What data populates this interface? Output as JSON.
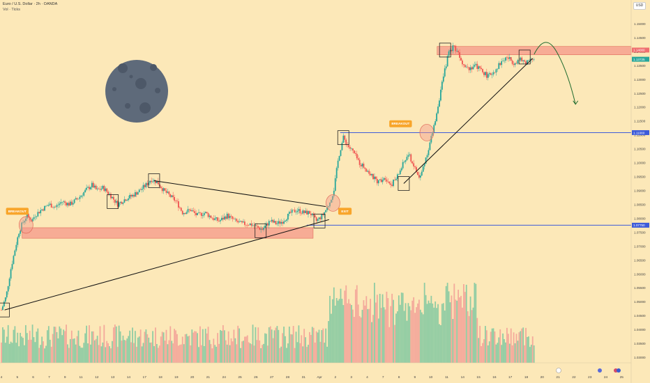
{
  "header": {
    "symbol": "Euro / U.S. Dollar · 2h · OANDA",
    "volume_label": "Vol · Ticks",
    "currency": "USD"
  },
  "colors": {
    "background": "#fce8b8",
    "bull": "#26a69a",
    "bear": "#ef5350",
    "vol_bull": "#8fcca3",
    "vol_bear": "#f4a99b",
    "zone": "#f59c8c",
    "blue_line": "#3d5bd9",
    "badge": "#f8a52a",
    "moon": "#5e6a7a"
  },
  "chart_data": {
    "type": "candlestick",
    "symbol": "EURUSD",
    "timeframe": "2h",
    "ylim": [
      1.028,
      1.153
    ],
    "y_ticks": [
      1.15,
      1.145,
      1.14,
      1.135,
      1.13,
      1.125,
      1.12,
      1.115,
      1.11,
      1.105,
      1.1,
      1.095,
      1.09,
      1.085,
      1.08,
      1.075,
      1.07,
      1.065,
      1.06,
      1.055,
      1.05,
      1.045,
      1.04,
      1.035,
      1.03
    ],
    "y_tick_labels": [
      "1.15000",
      "1.14500",
      "1.14000",
      "1.13500",
      "1.13000",
      "1.12500",
      "1.12000",
      "1.11500",
      "1.11000",
      "1.10500",
      "1.10000",
      "1.09500",
      "1.09000",
      "1.08500",
      "1.08000",
      "1.07500",
      "1.07000",
      "1.06500",
      "1.06000",
      "1.05500",
      "1.05000",
      "1.04500",
      "1.04000",
      "1.03500",
      "1.03000"
    ],
    "x_ticks": [
      {
        "label": "4",
        "x": 0
      },
      {
        "label": "5",
        "x": 1
      },
      {
        "label": "6",
        "x": 2
      },
      {
        "label": "7",
        "x": 3
      },
      {
        "label": "9",
        "x": 4
      },
      {
        "label": "11",
        "x": 5
      },
      {
        "label": "12",
        "x": 6
      },
      {
        "label": "13",
        "x": 7
      },
      {
        "label": "14",
        "x": 8
      },
      {
        "label": "17",
        "x": 9
      },
      {
        "label": "18",
        "x": 10
      },
      {
        "label": "19",
        "x": 11
      },
      {
        "label": "20",
        "x": 12
      },
      {
        "label": "21",
        "x": 13
      },
      {
        "label": "24",
        "x": 14
      },
      {
        "label": "25",
        "x": 15
      },
      {
        "label": "26",
        "x": 16
      },
      {
        "label": "27",
        "x": 17
      },
      {
        "label": "28",
        "x": 18
      },
      {
        "label": "31",
        "x": 19
      },
      {
        "label": "Apr",
        "x": 20
      },
      {
        "label": "2",
        "x": 21
      },
      {
        "label": "3",
        "x": 22
      },
      {
        "label": "4",
        "x": 23
      },
      {
        "label": "7",
        "x": 24
      },
      {
        "label": "8",
        "x": 25
      },
      {
        "label": "9",
        "x": 26
      },
      {
        "label": "10",
        "x": 27
      },
      {
        "label": "11",
        "x": 28
      },
      {
        "label": "14",
        "x": 29
      },
      {
        "label": "15",
        "x": 30
      },
      {
        "label": "16",
        "x": 31
      },
      {
        "label": "17",
        "x": 32
      },
      {
        "label": "18",
        "x": 33
      },
      {
        "label": "20",
        "x": 34
      },
      {
        "label": "21",
        "x": 35
      },
      {
        "label": "22",
        "x": 36
      },
      {
        "label": "23",
        "x": 37
      },
      {
        "label": "24",
        "x": 38
      },
      {
        "label": "25",
        "x": 39
      }
    ],
    "price_path": [
      [
        0,
        1.047
      ],
      [
        0.3,
        1.052
      ],
      [
        0.6,
        1.062
      ],
      [
        0.9,
        1.07
      ],
      [
        1.1,
        1.075
      ],
      [
        1.3,
        1.078
      ],
      [
        1.6,
        1.081
      ],
      [
        1.9,
        1.079
      ],
      [
        2.1,
        1.081
      ],
      [
        2.5,
        1.083
      ],
      [
        3.0,
        1.085
      ],
      [
        3.4,
        1.084
      ],
      [
        3.8,
        1.086
      ],
      [
        4.3,
        1.085
      ],
      [
        4.8,
        1.087
      ],
      [
        5.3,
        1.09
      ],
      [
        5.7,
        1.092
      ],
      [
        6.0,
        1.09
      ],
      [
        6.4,
        1.091
      ],
      [
        6.9,
        1.088
      ],
      [
        7.3,
        1.085
      ],
      [
        7.8,
        1.087
      ],
      [
        8.2,
        1.088
      ],
      [
        8.7,
        1.09
      ],
      [
        9.1,
        1.092
      ],
      [
        9.4,
        1.094
      ],
      [
        9.8,
        1.093
      ],
      [
        10.2,
        1.09
      ],
      [
        10.6,
        1.088
      ],
      [
        11.0,
        1.086
      ],
      [
        11.4,
        1.082
      ],
      [
        11.9,
        1.083
      ],
      [
        12.3,
        1.081
      ],
      [
        12.8,
        1.082
      ],
      [
        13.3,
        1.08
      ],
      [
        13.7,
        1.079
      ],
      [
        14.2,
        1.081
      ],
      [
        14.7,
        1.079
      ],
      [
        15.1,
        1.078
      ],
      [
        15.6,
        1.078
      ],
      [
        16.0,
        1.077
      ],
      [
        16.4,
        1.076
      ],
      [
        16.9,
        1.079
      ],
      [
        17.3,
        1.078
      ],
      [
        17.7,
        1.079
      ],
      [
        18.2,
        1.082
      ],
      [
        18.6,
        1.083
      ],
      [
        19.0,
        1.082
      ],
      [
        19.4,
        1.082
      ],
      [
        19.8,
        1.079
      ],
      [
        20.2,
        1.081
      ],
      [
        20.6,
        1.085
      ],
      [
        20.9,
        1.09
      ],
      [
        21.2,
        1.102
      ],
      [
        21.5,
        1.109
      ],
      [
        21.8,
        1.106
      ],
      [
        22.1,
        1.104
      ],
      [
        22.5,
        1.1
      ],
      [
        22.9,
        1.098
      ],
      [
        23.3,
        1.095
      ],
      [
        23.7,
        1.093
      ],
      [
        24.1,
        1.095
      ],
      [
        24.5,
        1.092
      ],
      [
        24.9,
        1.095
      ],
      [
        25.3,
        1.1
      ],
      [
        25.6,
        1.103
      ],
      [
        26.0,
        1.098
      ],
      [
        26.3,
        1.094
      ],
      [
        26.6,
        1.1
      ],
      [
        26.9,
        1.106
      ],
      [
        27.2,
        1.113
      ],
      [
        27.5,
        1.122
      ],
      [
        27.8,
        1.131
      ],
      [
        28.1,
        1.139
      ],
      [
        28.4,
        1.142
      ],
      [
        28.7,
        1.14
      ],
      [
        29.0,
        1.136
      ],
      [
        29.4,
        1.134
      ],
      [
        29.8,
        1.135
      ],
      [
        30.2,
        1.133
      ],
      [
        30.6,
        1.131
      ],
      [
        31.0,
        1.133
      ],
      [
        31.4,
        1.136
      ],
      [
        31.8,
        1.138
      ],
      [
        32.2,
        1.136
      ],
      [
        32.6,
        1.137
      ],
      [
        33.0,
        1.136
      ],
      [
        33.3,
        1.138
      ],
      [
        33.5,
        1.137
      ]
    ],
    "projection": [
      [
        33.5,
        1.139
      ],
      [
        34.2,
        1.1425
      ],
      [
        34.9,
        1.14
      ],
      [
        35.6,
        1.13
      ],
      [
        36.1,
        1.121
      ]
    ],
    "last_price": 1.1372,
    "last_price_label": "1.13725",
    "zones": [
      {
        "name": "resistance-zone",
        "x0": 27.4,
        "x1": 39.6,
        "y0": 1.1388,
        "y1": 1.1418
      },
      {
        "name": "support-zone",
        "x0": 1.3,
        "x1": 19.6,
        "y0": 1.0728,
        "y1": 1.0766
      }
    ],
    "horizontal_lines": [
      {
        "name": "breakout-level-line",
        "x0": 21.3,
        "x1": 39.6,
        "y": 1.1108,
        "label": "1.11080"
      },
      {
        "name": "support-level-line",
        "x0": 19.2,
        "x1": 39.6,
        "y": 1.0775,
        "label": "1.07750"
      }
    ],
    "price_labels": [
      {
        "name": "resistance-zone-label",
        "y": 1.1405,
        "text": "1.14000"
      }
    ],
    "trendlines": [
      {
        "name": "main-uptrend-line",
        "x0": 0.2,
        "y0": 1.047,
        "x1": 20.6,
        "y1": 1.0795
      },
      {
        "name": "descending-triangle-line",
        "x0": 9.6,
        "y0": 1.0935,
        "x1": 20.4,
        "y1": 1.0842
      },
      {
        "name": "new-uptrend-line",
        "x0": 25.3,
        "y0": 1.0925,
        "x1": 33.4,
        "y1": 1.1375
      }
    ],
    "boxes": [
      {
        "name": "box-swing-low-start",
        "x": 0.15,
        "y": 1.047
      },
      {
        "name": "box-mid-1",
        "x": 7.0,
        "y": 1.086
      },
      {
        "name": "box-triangle-top",
        "x": 9.6,
        "y": 1.0935
      },
      {
        "name": "box-triangle-low",
        "x": 16.3,
        "y": 1.0755
      },
      {
        "name": "box-trend-touch",
        "x": 20.0,
        "y": 1.079
      },
      {
        "name": "box-breakout-high",
        "x": 21.5,
        "y": 1.109
      },
      {
        "name": "box-retest-low",
        "x": 25.3,
        "y": 1.0925
      },
      {
        "name": "box-top-high",
        "x": 27.9,
        "y": 1.1405
      },
      {
        "name": "box-current",
        "x": 32.9,
        "y": 1.138
      }
    ],
    "circles": [
      {
        "name": "breakout-circle-1",
        "x": 1.55,
        "y": 1.0776
      },
      {
        "name": "exit-circle",
        "x": 20.85,
        "y": 1.0855
      },
      {
        "name": "breakout-circle-2",
        "x": 26.75,
        "y": 1.1108
      }
    ],
    "annotations": [
      {
        "name": "breakout-badge-1",
        "text": "BREAKOUT",
        "x": 1.0,
        "y": 1.0825
      },
      {
        "name": "exit-badge",
        "text": "EXIT",
        "x": 21.6,
        "y": 1.0825
      },
      {
        "name": "breakout-badge-2",
        "text": "BREAKOUT",
        "x": 25.1,
        "y": 1.114
      }
    ],
    "volume_ylim": [
      0,
      100
    ],
    "grid": false,
    "legend": "none"
  }
}
